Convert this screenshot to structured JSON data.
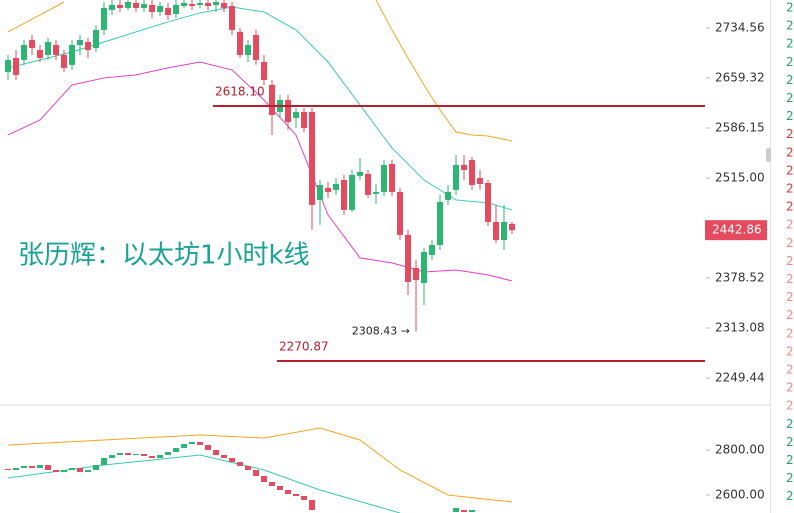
{
  "title": "张历辉：以太坊1小时k线",
  "right_column": [
    {
      "text": "2",
      "color": "#26a269"
    },
    {
      "text": "2",
      "color": "#26a269"
    },
    {
      "text": "2",
      "color": "#26a269"
    },
    {
      "text": "2",
      "color": "#26a269"
    },
    {
      "text": "2",
      "color": "#26a269"
    },
    {
      "text": "2",
      "color": "#26a269"
    },
    {
      "text": "2",
      "color": "#26a269"
    },
    {
      "text": "2",
      "color": "#d9363e"
    },
    {
      "text": "2",
      "color": "#d9363e"
    },
    {
      "text": "2",
      "color": "#d9363e"
    },
    {
      "text": "2",
      "color": "#d9363e"
    },
    {
      "text": "2",
      "color": "#d9363e"
    },
    {
      "text": "2",
      "color": "#f08a8a"
    },
    {
      "text": "2",
      "color": "#f08a8a"
    },
    {
      "text": "2",
      "color": "#f08a8a"
    },
    {
      "text": "2",
      "color": "#f08a8a"
    },
    {
      "text": "2",
      "color": "#f08a8a"
    },
    {
      "text": "2",
      "color": "#f08a8a"
    },
    {
      "text": "2",
      "color": "#f08a8a"
    },
    {
      "text": "2",
      "color": "#f08a8a"
    },
    {
      "text": "2",
      "color": "#f08a8a"
    },
    {
      "text": "2",
      "color": "#f08a8a"
    },
    {
      "text": "2",
      "color": "#f08a8a"
    },
    {
      "text": "2",
      "color": "#26a269"
    },
    {
      "text": "2",
      "color": "#26a269"
    },
    {
      "text": "2",
      "color": "#26a269"
    },
    {
      "text": "2",
      "color": "#26a269"
    },
    {
      "text": "2",
      "color": "#26a269"
    }
  ],
  "chart_data": [
    {
      "type": "candlestick",
      "log_scale": true,
      "grid": false,
      "ylim": [
        2215.8,
        2777.6
      ],
      "yticks": [
        2734.56,
        2659.32,
        2586.15,
        {
          "value": 2515,
          "label": "2515.00"
        },
        2378.52,
        2313.08,
        2249.44
      ],
      "up_color": "#2bb673",
      "down_color": "#e54a5e",
      "open": [
        2668.3,
        2689.2,
        2686.2,
        2716.3,
        2701.2,
        2693.7,
        2708.7,
        2693.7,
        2678.8,
        2708.7,
        2713.3,
        2704.2,
        2731.6,
        2762.2,
        2769.9,
        2765.3,
        2773.0,
        2765.3,
        2769.9,
        2759.1,
        2765.3,
        2756.0,
        2768.4,
        2771.4,
        2769.9,
        2773.0,
        2769.9,
        2773.0,
        2768.4,
        2728.6,
        2693.7,
        2723.9,
        2683.2,
        2649.0,
        2609.4,
        2626.9,
        2600.6,
        2609.4,
        2609.4,
        2484.4,
        2501.1,
        2498.3,
        2512.2,
        2470.6,
        2517.9,
        2520.7,
        2492.8,
        2495.5,
        2534.7,
        2495.5,
        2436.4,
        2391.9,
        2371.9,
        2409.3,
        2422.7,
        2484.4,
        2498.3,
        2533.4,
        2540.4,
        2515.0,
        2508.0,
        2454.1,
        2429.5,
        2451.4
      ],
      "high": [
        2693.7,
        2701.2,
        2716.3,
        2723.9,
        2708.7,
        2719.3,
        2716.3,
        2701.2,
        2716.3,
        2723.9,
        2719.3,
        2739.2,
        2774.5,
        2777.6,
        2777.6,
        2777.6,
        2777.6,
        2777.6,
        2777.6,
        2774.5,
        2773.0,
        2777.6,
        2777.6,
        2777.6,
        2777.6,
        2777.6,
        2777.6,
        2777.6,
        2774.5,
        2734.7,
        2716.3,
        2731.6,
        2693.7,
        2656.4,
        2634.3,
        2634.3,
        2615.2,
        2615.2,
        2615.2,
        2512.2,
        2509.4,
        2515.0,
        2519.3,
        2526.3,
        2543.2,
        2526.3,
        2506.6,
        2540.4,
        2540.4,
        2501.1,
        2443.2,
        2402.6,
        2418.7,
        2429.5,
        2491.4,
        2505.2,
        2547.5,
        2547.5,
        2544.6,
        2526.3,
        2512.2,
        2477.5,
        2477.5,
        2454.1
      ],
      "low": [
        2656.4,
        2656.4,
        2678.8,
        2693.7,
        2683.2,
        2686.2,
        2686.2,
        2668.3,
        2671.3,
        2693.7,
        2689.2,
        2698.2,
        2723.9,
        2754.5,
        2759.1,
        2762.2,
        2759.1,
        2759.1,
        2749.9,
        2753.0,
        2746.8,
        2749.9,
        2765.3,
        2762.2,
        2765.3,
        2762.2,
        2759.1,
        2759.1,
        2723.9,
        2689.2,
        2683.2,
        2678.8,
        2649.0,
        2576.1,
        2600.6,
        2583.3,
        2586.2,
        2580.4,
        2443.2,
        2450.0,
        2487.2,
        2491.4,
        2463.7,
        2467.8,
        2512.2,
        2487.2,
        2478.9,
        2489.9,
        2489.9,
        2429.5,
        2356.1,
        2308.43,
        2343.0,
        2402.6,
        2416.0,
        2477.5,
        2491.4,
        2512.2,
        2498.3,
        2498.3,
        2448.6,
        2425.5,
        2416.0,
        2437.7
      ],
      "close": [
        2686.2,
        2663.9,
        2708.7,
        2704.2,
        2689.2,
        2713.3,
        2693.7,
        2674.3,
        2708.7,
        2716.3,
        2701.2,
        2731.6,
        2765.3,
        2769.9,
        2765.3,
        2774.5,
        2765.3,
        2771.4,
        2759.1,
        2768.4,
        2754.5,
        2769.9,
        2773.0,
        2768.4,
        2773.0,
        2768.4,
        2774.5,
        2765.3,
        2731.6,
        2693.7,
        2708.7,
        2686.2,
        2656.4,
        2605.0,
        2626.9,
        2594.8,
        2609.4,
        2586.2,
        2477.5,
        2505.2,
        2495.5,
        2506.6,
        2470.6,
        2519.3,
        2523.5,
        2491.4,
        2495.5,
        2533.4,
        2495.5,
        2436.4,
        2373.2,
        2375.9,
        2413.3,
        2422.7,
        2481.6,
        2495.5,
        2533.4,
        2526.3,
        2505.2,
        2506.6,
        2454.1,
        2429.5,
        2454.1,
        2442.86
      ],
      "series": [
        {
          "color": "#3cc8b4",
          "x": [
            0,
            4,
            8,
            12,
            16,
            20,
            24,
            28,
            32,
            36,
            40,
            44,
            48,
            52,
            56,
            60,
            63
          ],
          "values": [
            2674.3,
            2686.2,
            2698.2,
            2713.3,
            2728.6,
            2743.8,
            2757.6,
            2766.8,
            2759.1,
            2731.6,
            2683.2,
            2619.6,
            2557.5,
            2512.2,
            2484.4,
            2480.3,
            2470.6
          ]
        },
        {
          "color": "#f5a623",
          "x": [
            0,
            4,
            7,
            26,
            46,
            48,
            50,
            52,
            54,
            56,
            58,
            60,
            63
          ],
          "values": [
            2728.6,
            2754.5,
            2774.5,
            null,
            2777.6,
            2731.6,
            2689.2,
            2649.0,
            2612.3,
            2580.4,
            2576.1,
            2574.6,
            2567.5
          ]
        },
        {
          "color": "#e040c8",
          "x": [
            0,
            4,
            8,
            12,
            16,
            20,
            24,
            28,
            32,
            36,
            40,
            44,
            48,
            52,
            56,
            60,
            63
          ],
          "values": [
            2576.1,
            2597.7,
            2649.0,
            2659.4,
            2663.9,
            2674.3,
            2683.2,
            2671.3,
            2626.9,
            2576.1,
            2463.7,
            2405.3,
            2398.6,
            2386.5,
            2389.2,
            2382.6,
            2374.6
          ]
        }
      ],
      "levels": [
        {
          "value": 2618.1,
          "label": "2618.10"
        },
        {
          "value": 2270.87,
          "label": "2270.87"
        }
      ],
      "level_color": "#b3202e",
      "low_note": {
        "value": 2308.43,
        "label": "2308.43 →"
      },
      "last_price": {
        "value": 2442.86,
        "label": "2442.86"
      }
    },
    {
      "type": "candlestick",
      "log_scale": false,
      "grid": false,
      "ylim": [
        2520,
        3000
      ],
      "yticks": [
        {
          "value": 2800,
          "label": "2800.00"
        },
        {
          "value": 2600,
          "label": "2600.00"
        }
      ],
      "up_color": "#2bb673",
      "down_color": "#e54a5e",
      "open": [
        2715.6,
        2711.1,
        2720.0,
        2728.9,
        2720.0,
        2733.3,
        2711.1,
        2702.2,
        2711.1,
        2720.0,
        2702.2,
        2711.1,
        2733.3,
        2764.4,
        2777.8,
        2786.7,
        2777.8,
        2782.2,
        2773.3,
        2764.4,
        2777.8,
        2791.1,
        2808.9,
        2826.7,
        2835.6,
        2822.2,
        2800,
        2777.8,
        2764.4,
        2746.7,
        2728.9,
        2711.1,
        2684.4,
        2657.8,
        2640,
        2622.2,
        2604.4,
        2595.6,
        2577.8,
        null,
        null,
        null,
        null,
        null,
        null,
        null,
        null,
        null,
        null,
        null,
        null,
        null,
        null,
        null,
        null,
        null,
        2524.4,
        2533.3,
        2524.4
      ],
      "close": [
        2711.1,
        2720.0,
        2728.9,
        2720.0,
        2733.3,
        2711.1,
        2702.2,
        2711.1,
        2720.0,
        2702.2,
        2711.1,
        2733.3,
        2764.4,
        2777.8,
        2786.7,
        2777.8,
        2782.2,
        2773.3,
        2764.4,
        2777.8,
        2791.1,
        2808.9,
        2826.7,
        2835.6,
        2822.2,
        2800,
        2777.8,
        2764.4,
        2746.7,
        2728.9,
        2711.1,
        2684.4,
        2657.8,
        2640,
        2622.2,
        2604.4,
        2595.6,
        2577.8,
        2533.3,
        null,
        null,
        null,
        null,
        null,
        null,
        null,
        null,
        null,
        null,
        null,
        null,
        null,
        null,
        null,
        null,
        null,
        2542.2,
        2524.4,
        2533.3
      ],
      "series": [
        {
          "color": "#f5a623",
          "x": [
            0,
            12,
            24,
            32,
            39,
            44,
            49,
            55,
            63
          ],
          "values": [
            2822.2,
            2844.4,
            2866.7,
            2853.3,
            2897.8,
            2844.4,
            2711.1,
            2600,
            2568.9
          ]
        },
        {
          "color": "#3cc8b4",
          "x": [
            0,
            12,
            24,
            32,
            39,
            49
          ],
          "values": [
            2675.6,
            2733.3,
            2777.8,
            2711.1,
            2622.2,
            2520
          ]
        }
      ]
    }
  ]
}
